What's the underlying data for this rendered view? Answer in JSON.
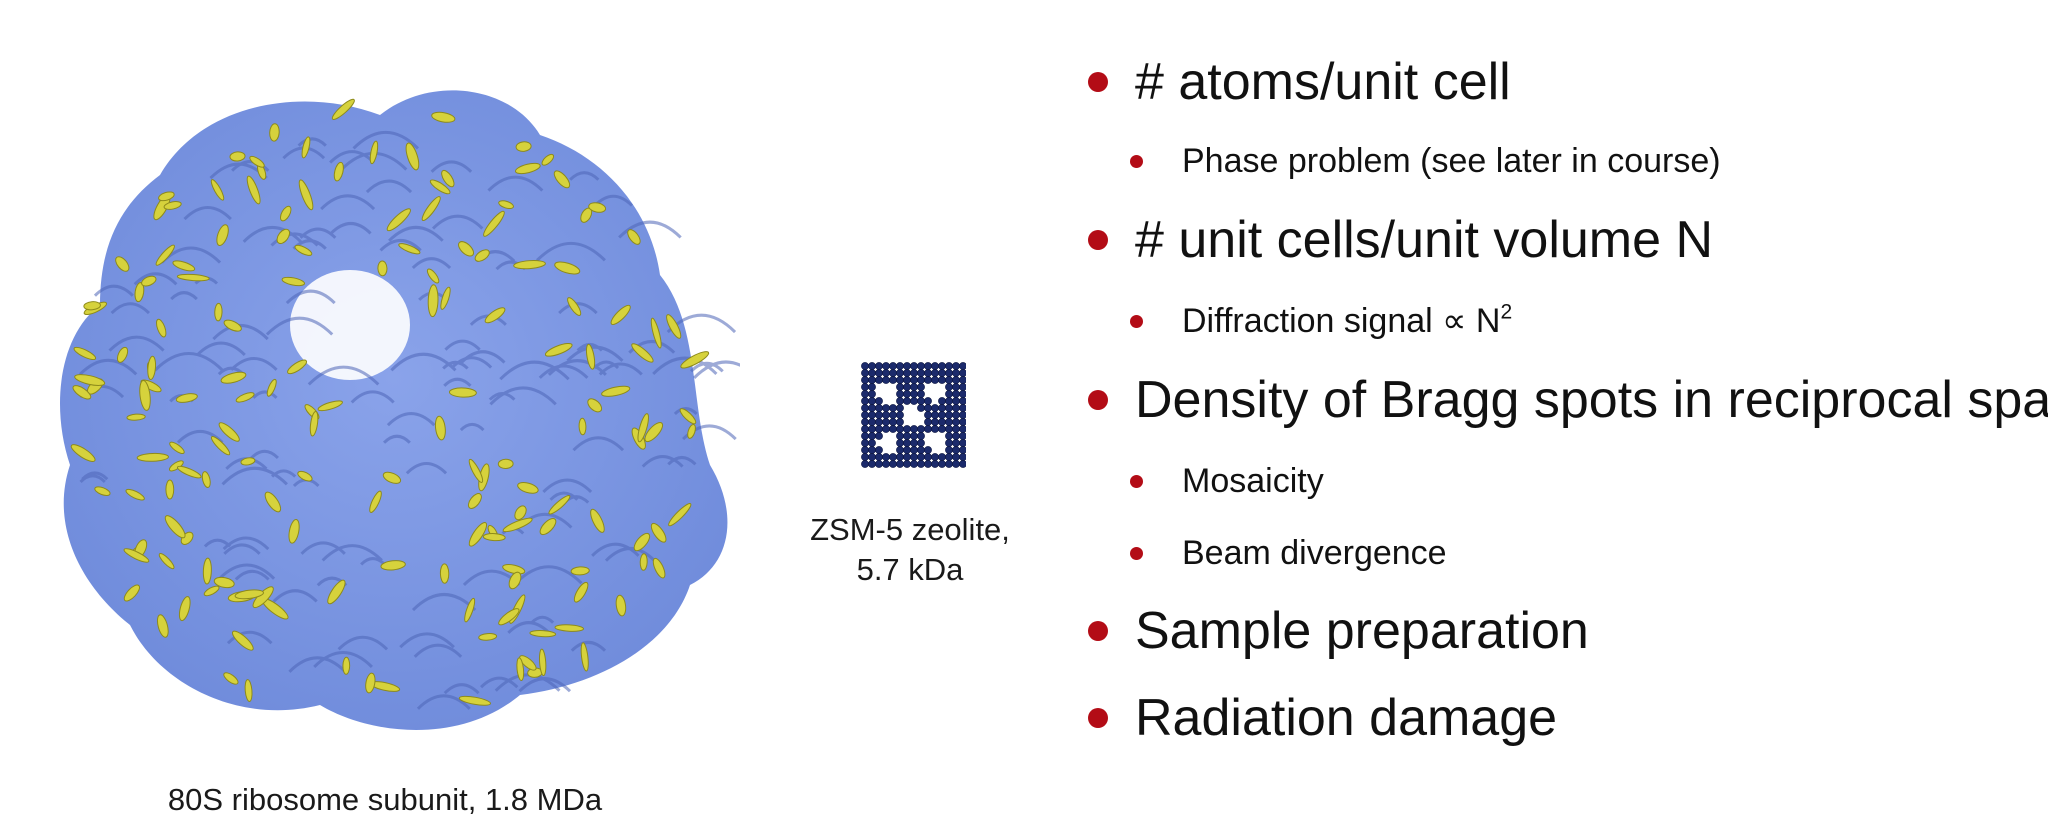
{
  "figures": {
    "ribosome_caption": "80S ribosome subunit, 1.8 MDa",
    "zeolite_caption_line1": "ZSM-5 zeolite,",
    "zeolite_caption_line2": "5.7 kDa"
  },
  "bullets": {
    "atoms": "# atoms/unit cell",
    "phase": "Phase problem (see later in course)",
    "unit_cells": "# unit cells/unit volume N",
    "diffraction": "Diffraction signal ∝ N",
    "diffraction_exponent": "2",
    "density": "Density of Bragg spots in reciprocal space",
    "mosaicity": "Mosaicity",
    "beam": "Beam divergence",
    "sample": "Sample preparation",
    "radiation": "Radiation damage"
  },
  "colors": {
    "bullet": "#b30c16",
    "ribosome_rna": "#7f9ae6",
    "ribosome_protein": "#d7d23a",
    "zeolite": "#1b2a6b"
  }
}
